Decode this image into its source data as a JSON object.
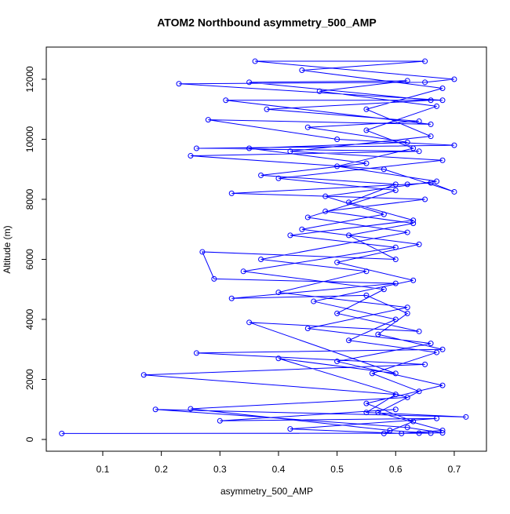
{
  "chart_data": {
    "type": "line",
    "marker": "circle",
    "color": "#0000ff",
    "title": "ATOM2 Northbound asymmetry_500_AMP",
    "xlabel": "asymmetry_500_AMP",
    "ylabel": "Altitude (m)",
    "xlim": [
      0.0036,
      0.755
    ],
    "ylim": [
      -392,
      13072
    ],
    "xticks": [
      0.1,
      0.2,
      0.3,
      0.4,
      0.5,
      0.6,
      0.7
    ],
    "yticks": [
      0,
      2000,
      4000,
      6000,
      8000,
      10000,
      12000
    ],
    "x": [
      0.03,
      0.64,
      0.68,
      0.62,
      0.19,
      0.72,
      0.55,
      0.6,
      0.17,
      0.65,
      0.26,
      0.68,
      0.57,
      0.62,
      0.55,
      0.32,
      0.6,
      0.29,
      0.27,
      0.6,
      0.52,
      0.63,
      0.48,
      0.65,
      0.32,
      0.62,
      0.66,
      0.7,
      0.58,
      0.25,
      0.64,
      0.26,
      0.7,
      0.5,
      0.28,
      0.66,
      0.31,
      0.68,
      0.23,
      0.65,
      0.7,
      0.36,
      0.65,
      0.44,
      0.68,
      0.55,
      0.66,
      0.42,
      0.68,
      0.4,
      0.6,
      0.45,
      0.62,
      0.37,
      0.55,
      0.4,
      0.62,
      0.45,
      0.66,
      0.5,
      0.68,
      0.55,
      0.63,
      0.58,
      0.66,
      0.59,
      0.25,
      0.62,
      0.4,
      0.6,
      0.35,
      0.64,
      0.5,
      0.58,
      0.34,
      0.6,
      0.42,
      0.63,
      0.52,
      0.6,
      0.37,
      0.55,
      0.35,
      0.62,
      0.45,
      0.64,
      0.38,
      0.66,
      0.35,
      0.62,
      0.47,
      0.67,
      0.55,
      0.63,
      0.5,
      0.67,
      0.48,
      0.58,
      0.44,
      0.64,
      0.5,
      0.63,
      0.46,
      0.6,
      0.52,
      0.67,
      0.56,
      0.64,
      0.57,
      0.68,
      0.61,
      0.42,
      0.67,
      0.3,
      0.6
    ],
    "values": [
      200,
      210,
      220,
      400,
      1000,
      750,
      900,
      1500,
      2150,
      2500,
      2880,
      3000,
      3500,
      4200,
      4800,
      4700,
      5200,
      5350,
      6250,
      6000,
      6800,
      7200,
      7600,
      8000,
      8200,
      8500,
      8550,
      8250,
      9000,
      9450,
      9600,
      9700,
      9800,
      10000,
      10650,
      10500,
      11300,
      11300,
      11850,
      11900,
      12000,
      12600,
      12600,
      12300,
      11700,
      11000,
      10100,
      9600,
      9300,
      8700,
      8300,
      7400,
      6900,
      6000,
      5600,
      4900,
      4400,
      3700,
      3200,
      2600,
      1800,
      1200,
      600,
      200,
      210,
      300,
      1020,
      1400,
      2700,
      2200,
      3900,
      3600,
      4200,
      5000,
      5600,
      6400,
      6800,
      7300,
      7900,
      8500,
      8800,
      9200,
      9700,
      9900,
      10400,
      10600,
      11000,
      11300,
      11900,
      11950,
      11600,
      11100,
      10300,
      9700,
      9100,
      8600,
      8100,
      7500,
      7000,
      6500,
      5900,
      5300,
      4600,
      4000,
      3300,
      2900,
      2200,
      1600,
      900,
      300,
      200,
      350,
      700,
      620,
      1000
    ]
  }
}
